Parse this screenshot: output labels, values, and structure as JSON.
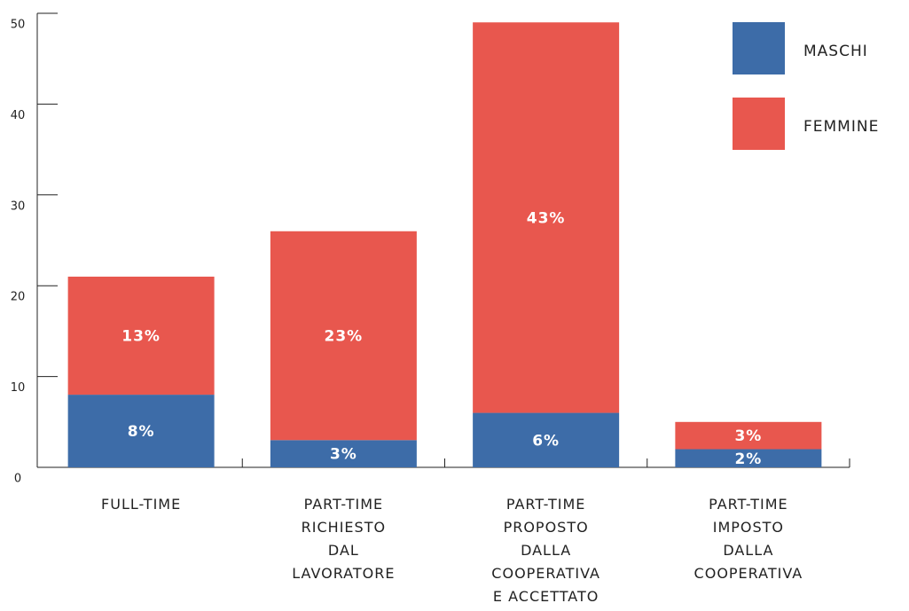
{
  "chart_data": {
    "type": "stacked_bar",
    "categories": [
      "FULL-TIME",
      "PART-TIME\nRICHIESTO\nDAL\nLAVORATORE",
      "PART-TIME\nPROPOSTO\nDALLA\nCOOPERATIVA\nE ACCETTATO",
      "PART-TIME\nIMPOSTO\nDALLA\nCOOPERATIVA"
    ],
    "series": [
      {
        "name": "MASCHI",
        "color": "#3d6ca8",
        "values": [
          8,
          3,
          6,
          2
        ],
        "value_labels": [
          "8%",
          "3%",
          "6%",
          "2%"
        ]
      },
      {
        "name": "FEMMINE",
        "color": "#e8574e",
        "values": [
          13,
          23,
          43,
          3
        ],
        "value_labels": [
          "13%",
          "23%",
          "43%",
          "3%"
        ]
      }
    ],
    "ylim": [
      0,
      50
    ],
    "yticks": [
      0,
      10,
      20,
      30,
      40,
      50
    ],
    "grid": false,
    "legend": "top-right"
  }
}
